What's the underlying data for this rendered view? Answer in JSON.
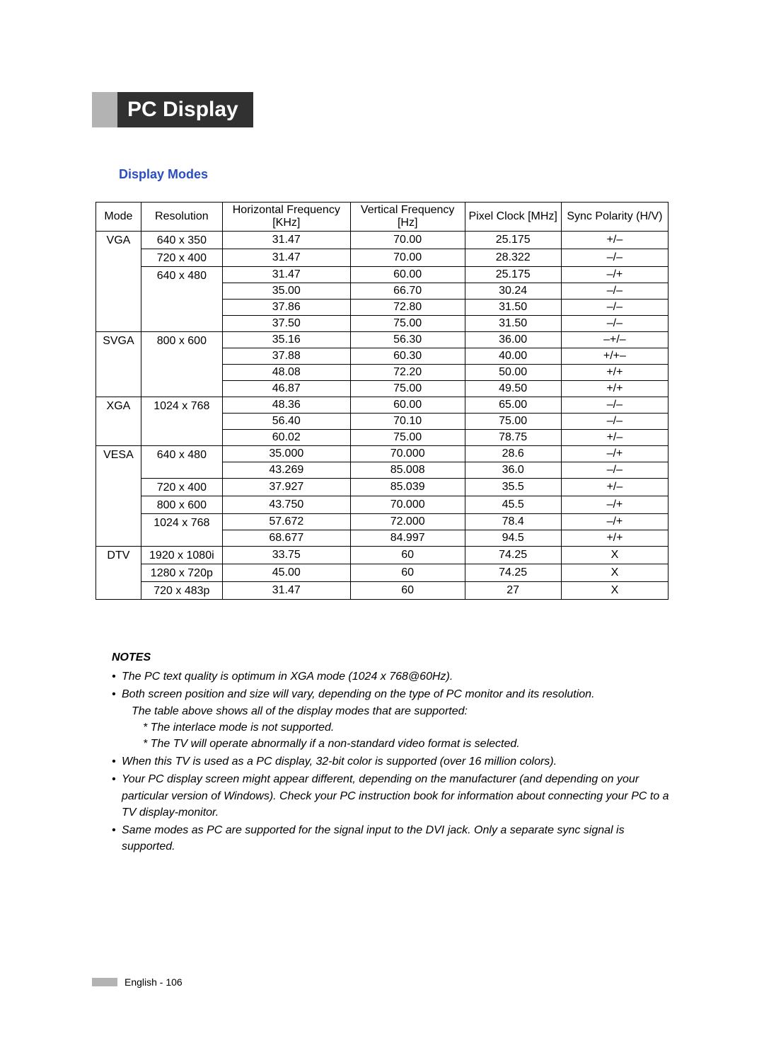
{
  "layout": {
    "page_bg": "#ffffff",
    "title_bg": "#313131",
    "title_color": "#ffffff",
    "accent_gray": "#b3b3b3",
    "subheading_color": "#2a4fbd",
    "border_color": "#000000",
    "title_fontsize": 30,
    "subheading_fontsize": 18,
    "table_fontsize": 16,
    "notes_heading_fontsize": 16,
    "notes_fontsize": 16
  },
  "title": "PC Display",
  "subheading": "Display Modes",
  "table": {
    "columns": [
      "Mode",
      "Resolution",
      "Horizontal Frequency [KHz]",
      "Vertical Frequency [Hz]",
      "Pixel Clock [MHz]",
      "Sync Polarity (H/V)"
    ],
    "groups": [
      {
        "mode": "VGA",
        "blocks": [
          {
            "resolution": "640 x 350",
            "rows": [
              [
                "31.47",
                "70.00",
                "25.175",
                "+/–"
              ]
            ]
          },
          {
            "resolution": "720 x 400",
            "rows": [
              [
                "31.47",
                "70.00",
                "28.322",
                "–/–"
              ]
            ]
          },
          {
            "resolution": "640 x 480",
            "rows": [
              [
                "31.47",
                "60.00",
                "25.175",
                "–/+"
              ],
              [
                "35.00",
                "66.70",
                "30.24",
                "–/–"
              ],
              [
                "37.86",
                "72.80",
                "31.50",
                "–/–"
              ],
              [
                "37.50",
                "75.00",
                "31.50",
                "–/–"
              ]
            ]
          }
        ]
      },
      {
        "mode": "SVGA",
        "blocks": [
          {
            "resolution": "800 x 600",
            "rows": [
              [
                "35.16",
                "56.30",
                "36.00",
                "–+/–"
              ],
              [
                "37.88",
                "60.30",
                "40.00",
                "+/+–"
              ],
              [
                "48.08",
                "72.20",
                "50.00",
                "+/+"
              ],
              [
                "46.87",
                "75.00",
                "49.50",
                "+/+"
              ]
            ]
          }
        ]
      },
      {
        "mode": "XGA",
        "blocks": [
          {
            "resolution": "1024 x 768",
            "rows": [
              [
                "48.36",
                "60.00",
                "65.00",
                "–/–"
              ],
              [
                "56.40",
                "70.10",
                "75.00",
                "–/–"
              ],
              [
                "60.02",
                "75.00",
                "78.75",
                "+/–"
              ]
            ]
          }
        ]
      },
      {
        "mode": "VESA",
        "blocks": [
          {
            "resolution": "640 x 480",
            "rows": [
              [
                "35.000",
                "70.000",
                "28.6",
                "–/+"
              ],
              [
                "43.269",
                "85.008",
                "36.0",
                "–/–"
              ]
            ]
          },
          {
            "resolution": "720 x 400",
            "rows": [
              [
                "37.927",
                "85.039",
                "35.5",
                "+/–"
              ]
            ]
          },
          {
            "resolution": "800 x 600",
            "rows": [
              [
                "43.750",
                "70.000",
                "45.5",
                "–/+"
              ]
            ]
          },
          {
            "resolution": "1024 x 768",
            "rows": [
              [
                "57.672",
                "72.000",
                "78.4",
                "–/+"
              ],
              [
                "68.677",
                "84.997",
                "94.5",
                "+/+"
              ]
            ]
          }
        ]
      },
      {
        "mode": "DTV",
        "blocks": [
          {
            "resolution": "1920 x 1080i",
            "rows": [
              [
                "33.75",
                "60",
                "74.25",
                "X"
              ]
            ]
          },
          {
            "resolution": "1280 x 720p",
            "rows": [
              [
                "45.00",
                "60",
                "74.25",
                "X"
              ]
            ]
          },
          {
            "resolution": "720 x 483p",
            "rows": [
              [
                "31.47",
                "60",
                "27",
                "X"
              ]
            ]
          }
        ]
      }
    ]
  },
  "notes": {
    "heading": "NOTES",
    "items": [
      {
        "text": "The PC text quality is optimum in XGA mode (1024 x 768@60Hz)."
      },
      {
        "text": "Both screen position and size will vary, depending on the type of PC monitor and its resolution.",
        "sub": [
          "The table above shows all of the display modes that are supported:",
          "* The interlace mode is not supported.",
          "* The TV will operate abnormally if a non-standard video format is selected."
        ]
      },
      {
        "text": "When this TV is used as a PC display, 32-bit color is supported (over 16 million colors)."
      },
      {
        "text": "Your PC display screen might appear different, depending on the manufacturer (and depending on your particular version of Windows). Check your PC instruction book for information about connecting your PC to a TV display-monitor."
      },
      {
        "text": "Same modes as PC are supported for the signal input to the DVI jack. Only a separate sync signal is supported."
      }
    ]
  },
  "footer": "English - 106"
}
